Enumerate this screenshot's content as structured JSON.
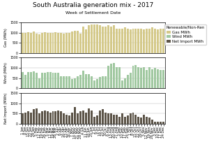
{
  "chart_data": [
    {
      "type": "bar",
      "title": "South Australia generation mix - 2017",
      "subtitle": "Week of Settlement Date",
      "legend_title": "Renewable/Non-Ren",
      "legend": "upper right",
      "y_label": "Gas (MWh)",
      "categories": [
        "1 Jan",
        "8 Jan",
        "15 Jan",
        "22 Jan",
        "29 Jan",
        "5 Feb",
        "12 Feb",
        "19 Feb",
        "26 Feb",
        "5 Mar",
        "12 Mar",
        "19 Mar",
        "26 Mar",
        "2 Apr",
        "9 Apr",
        "16 Apr",
        "23 Apr",
        "30 Apr",
        "7 May",
        "14 May",
        "21 May",
        "28 May",
        "4 Jun",
        "11 Jun",
        "18 Jun",
        "25 Jun",
        "2 Jul",
        "9 Jul",
        "16 Jul",
        "23 Jul",
        "30 Jul",
        "6 Aug",
        "13 Aug",
        "20 Aug",
        "27 Aug",
        "3 Sep",
        "10 Sep",
        "17 Sep",
        "24 Sep",
        "1 Oct",
        "8 Oct",
        "15 Oct",
        "22 Oct",
        "29 Oct",
        "5 Nov",
        "12 Nov",
        "19 Nov",
        "26 Nov",
        "3 Dec",
        "10 Dec",
        "17 Dec",
        "24 Dec"
      ],
      "series": [
        {
          "name": "Gas MWh",
          "color": "#d4c98a",
          "values": [
            1000,
            990,
            1010,
            1000,
            1050,
            960,
            920,
            1000,
            1010,
            1000,
            980,
            1000,
            1010,
            1000,
            980,
            960,
            1000,
            980,
            1050,
            1100,
            1100,
            950,
            1300,
            1150,
            1350,
            1400,
            1400,
            1380,
            1350,
            1300,
            1280,
            1350,
            1300,
            1350,
            1200,
            1200,
            1200,
            1250,
            1200,
            1150,
            1200,
            1180,
            1200,
            1200,
            1170,
            1200,
            1200,
            1250,
            1200,
            1150,
            1200,
            1200
          ]
        }
      ],
      "ylim": [
        0,
        1500
      ],
      "yticks": [
        0,
        500,
        1000,
        1500
      ],
      "grid": true,
      "tick_labels": "y"
    },
    {
      "type": "bar",
      "y_label": "Wind (MWh)",
      "categories": [
        "1 Jan",
        "8 Jan",
        "15 Jan",
        "22 Jan",
        "29 Jan",
        "5 Feb",
        "12 Feb",
        "19 Feb",
        "26 Feb",
        "5 Mar",
        "12 Mar",
        "19 Mar",
        "26 Mar",
        "2 Apr",
        "9 Apr",
        "16 Apr",
        "23 Apr",
        "30 Apr",
        "7 May",
        "14 May",
        "21 May",
        "28 May",
        "4 Jun",
        "11 Jun",
        "18 Jun",
        "25 Jun",
        "2 Jul",
        "9 Jul",
        "16 Jul",
        "23 Jul",
        "30 Jul",
        "6 Aug",
        "13 Aug",
        "20 Aug",
        "27 Aug",
        "3 Sep",
        "10 Sep",
        "17 Sep",
        "24 Sep",
        "1 Oct",
        "8 Oct",
        "15 Oct",
        "22 Oct",
        "29 Oct",
        "5 Nov",
        "12 Nov",
        "19 Nov",
        "26 Nov",
        "3 Dec",
        "10 Dec",
        "17 Dec",
        "24 Dec"
      ],
      "series": [
        {
          "name": "Wind MWh",
          "color": "#a0c8a0",
          "values": [
            800,
            650,
            800,
            800,
            820,
            750,
            500,
            750,
            750,
            780,
            780,
            750,
            750,
            750,
            600,
            600,
            600,
            600,
            450,
            500,
            600,
            650,
            850,
            700,
            700,
            600,
            400,
            450,
            550,
            600,
            600,
            1100,
            1200,
            1250,
            1050,
            1050,
            400,
            500,
            650,
            750,
            1100,
            1150,
            1050,
            1000,
            1050,
            900,
            1050,
            950,
            1000,
            950,
            900,
            900
          ]
        }
      ],
      "ylim": [
        0,
        1500
      ],
      "yticks": [
        0,
        500,
        1000,
        1500
      ],
      "grid": true,
      "tick_labels": "y"
    },
    {
      "type": "bar",
      "y_label": "Net Import (MWh)",
      "categories": [
        "1 Jan",
        "8 Jan",
        "15 Jan",
        "22 Jan",
        "29 Jan",
        "5 Feb",
        "12 Feb",
        "19 Feb",
        "26 Feb",
        "5 Mar",
        "12 Mar",
        "19 Mar",
        "26 Mar",
        "2 Apr",
        "9 Apr",
        "16 Apr",
        "23 Apr",
        "30 Apr",
        "7 May",
        "14 May",
        "21 May",
        "28 May",
        "4 Jun",
        "11 Jun",
        "18 Jun",
        "25 Jun",
        "2 Jul",
        "9 Jul",
        "16 Jul",
        "23 Jul",
        "30 Jul",
        "6 Aug",
        "13 Aug",
        "20 Aug",
        "27 Aug",
        "3 Sep",
        "10 Sep",
        "17 Sep",
        "24 Sep",
        "1 Oct",
        "8 Oct",
        "15 Oct",
        "22 Oct",
        "29 Oct",
        "5 Nov",
        "12 Nov",
        "19 Nov",
        "26 Nov",
        "3 Dec",
        "10 Dec",
        "17 Dec",
        "24 Dec"
      ],
      "series": [
        {
          "name": "Net Import MWh",
          "color": "#5c5448",
          "values": [
            500,
            550,
            600,
            550,
            700,
            750,
            500,
            600,
            650,
            600,
            550,
            600,
            600,
            650,
            600,
            500,
            450,
            400,
            550,
            800,
            500,
            600,
            650,
            550,
            750,
            650,
            350,
            400,
            650,
            700,
            550,
            500,
            500,
            450,
            450,
            350,
            500,
            350,
            400,
            500,
            550,
            450,
            350,
            300,
            450,
            350,
            300,
            200,
            100,
            100,
            100,
            100
          ]
        }
      ],
      "ylim": [
        0,
        1500
      ],
      "yticks": [
        0,
        500,
        1000,
        1500
      ],
      "grid": true
    }
  ]
}
